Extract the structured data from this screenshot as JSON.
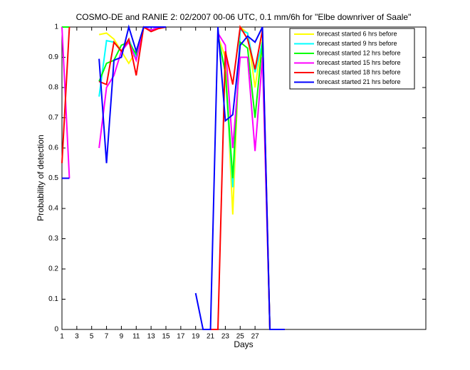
{
  "chart_data": {
    "type": "line",
    "title": "COSMO-DE and RANIE 2: 02/2007 00-06 UTC, 0.1 mm/6h for \"Elbe downriver of Saale\"",
    "xlabel": "Days",
    "ylabel": "Probability of detection",
    "x": [
      1,
      2,
      3,
      4,
      5,
      6,
      7,
      8,
      9,
      10,
      11,
      12,
      13,
      14,
      15,
      16,
      17,
      18,
      19,
      20,
      21,
      22,
      23,
      24,
      25,
      26,
      27,
      28,
      29,
      30,
      31
    ],
    "series": [
      {
        "name": "forecast started 6 hrs before",
        "color": "#ffff00",
        "values": [
          1,
          1,
          null,
          null,
          null,
          0.975,
          0.98,
          0.96,
          0.92,
          0.88,
          0.92,
          1,
          0.99,
          1,
          1,
          null,
          null,
          null,
          null,
          null,
          null,
          0.97,
          0.9,
          0.38,
          1,
          0.98,
          0.8,
          0.96,
          0,
          0,
          0
        ]
      },
      {
        "name": "forecast started 9 hrs before",
        "color": "#00ffff",
        "values": [
          1,
          1,
          null,
          null,
          null,
          0.77,
          0.955,
          0.95,
          0.92,
          0.96,
          0.9,
          1,
          0.99,
          1,
          1,
          null,
          null,
          null,
          null,
          null,
          null,
          0.97,
          0.85,
          0.47,
          0.99,
          0.98,
          0.85,
          0.95,
          0,
          0,
          0
        ]
      },
      {
        "name": "forecast started 12 hrs before",
        "color": "#00ff00",
        "values": [
          1,
          1,
          null,
          null,
          null,
          0.82,
          0.88,
          0.89,
          0.94,
          0.95,
          0.91,
          1,
          0.99,
          1,
          1,
          null,
          null,
          null,
          0,
          null,
          null,
          0.97,
          0.85,
          0.5,
          0.95,
          0.93,
          0.7,
          0.95,
          0,
          0,
          0
        ]
      },
      {
        "name": "forecast started 15 hrs before",
        "color": "#ff00ff",
        "values": [
          1,
          0.5,
          null,
          null,
          null,
          0.6,
          0.8,
          0.84,
          0.92,
          0.95,
          0.89,
          1,
          0.99,
          1,
          1,
          null,
          null,
          null,
          null,
          null,
          null,
          0.98,
          0.94,
          0.6,
          0.9,
          0.9,
          0.59,
          0.9,
          0,
          0,
          0
        ]
      },
      {
        "name": "forecast started 18 hrs before",
        "color": "#ff0000",
        "values": [
          0.55,
          1,
          null,
          null,
          null,
          0.82,
          0.81,
          0.95,
          0.92,
          0.96,
          0.84,
          1,
          0.985,
          0.995,
          1,
          null,
          null,
          null,
          null,
          null,
          0,
          0,
          0.92,
          0.81,
          1,
          0.96,
          0.86,
          0.99,
          0,
          0,
          0
        ]
      },
      {
        "name": "forecast started 21 hrs before",
        "color": "#0000ff",
        "values": [
          0.5,
          0.5,
          null,
          null,
          null,
          0.895,
          0.55,
          0.89,
          0.9,
          1,
          0.92,
          1,
          1,
          1,
          1,
          null,
          null,
          null,
          0.12,
          0,
          0,
          1,
          0.69,
          0.71,
          0.94,
          0.97,
          0.95,
          1,
          0,
          0,
          0
        ]
      }
    ],
    "xlim": [
      1,
      50
    ],
    "ylim": [
      0,
      1
    ],
    "xticks": [
      1,
      3,
      5,
      7,
      9,
      11,
      13,
      15,
      17,
      19,
      21,
      23,
      25,
      27
    ],
    "yticks": [
      0,
      0.1,
      0.2,
      0.3,
      0.4,
      0.5,
      0.6,
      0.7,
      0.8,
      0.9,
      1
    ],
    "grid": false,
    "legend": "upper right"
  }
}
